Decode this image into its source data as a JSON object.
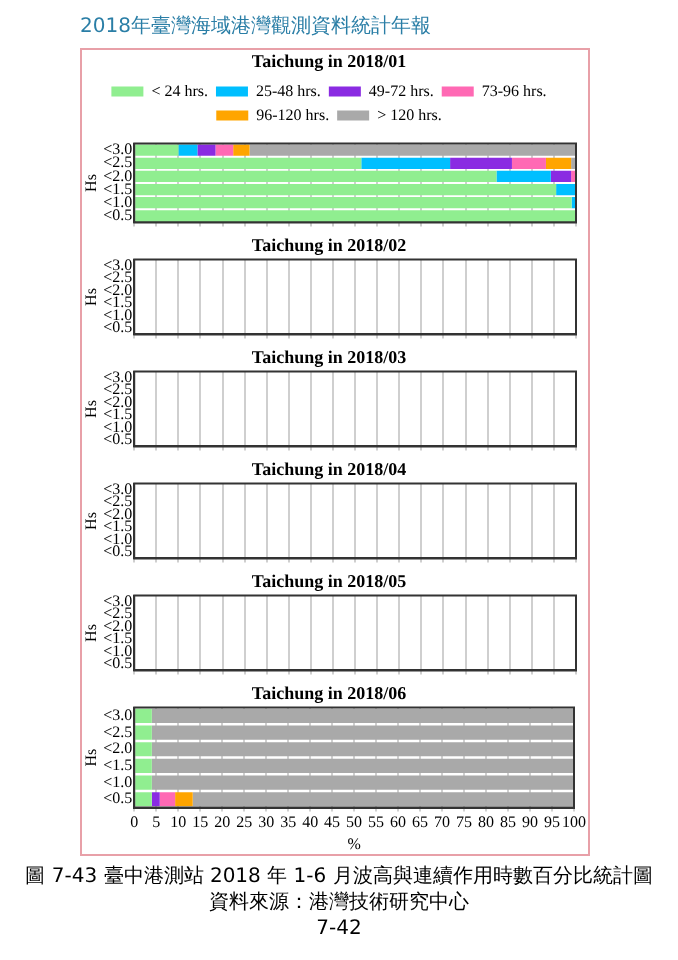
{
  "chart_data": [
    {
      "type": "bar",
      "orientation": "horizontal",
      "stacked": true,
      "title": "Taichung in 2018/01",
      "ylabel": "Hs",
      "legend": "top",
      "grid": "x",
      "tick_labels": "y",
      "annotations": [
        "2018年臺灣海域港灣觀測資料統計年報"
      ],
      "categories": [
        "<3.0",
        "<2.5",
        "<2.0",
        "<1.5",
        "<1.0",
        "<0.5"
      ],
      "xlim": [
        0,
        100
      ],
      "xticks": [
        0,
        5,
        10,
        15,
        20,
        25,
        30,
        35,
        40,
        45,
        50,
        55,
        60,
        65,
        70,
        75,
        80,
        85,
        90,
        95,
        100
      ],
      "series": [
        {
          "name": "< 24 hrs.",
          "color": "#90ee90",
          "values": [
            10,
            51.4,
            82,
            95.5,
            99,
            100
          ]
        },
        {
          "name": "25-48 hrs.",
          "color": "#00bfff",
          "values": [
            4.3,
            20.1,
            12.3,
            4.5,
            1,
            0
          ]
        },
        {
          "name": "49-72 hrs.",
          "color": "#8a2be2",
          "values": [
            4.1,
            14,
            4.6,
            0,
            0,
            0
          ]
        },
        {
          "name": "73-96 hrs.",
          "color": "#ff69b4",
          "values": [
            4,
            7.7,
            1.1,
            0,
            0,
            0
          ]
        },
        {
          "name": "96-120 hrs.",
          "color": "#ffa500",
          "values": [
            3.7,
            5.7,
            0,
            0,
            0,
            0
          ]
        },
        {
          "name": "> 120 hrs.",
          "color": "#a9a9a9",
          "values": [
            73.9,
            1.1,
            0,
            0,
            0,
            0
          ]
        }
      ]
    },
    {
      "type": "bar",
      "orientation": "horizontal",
      "stacked": true,
      "title": "Taichung in 2018/02",
      "ylabel": "Hs",
      "grid": "x",
      "tick_labels": "y",
      "categories": [
        "<3.0",
        "<2.5",
        "<2.0",
        "<1.5",
        "<1.0",
        "<0.5"
      ],
      "xlim": [
        0,
        100
      ],
      "xticks": [
        0,
        5,
        10,
        15,
        20,
        25,
        30,
        35,
        40,
        45,
        50,
        55,
        60,
        65,
        70,
        75,
        80,
        85,
        90,
        95,
        100
      ],
      "series": [
        {
          "color": "#90ee90",
          "values": [
            null,
            null,
            null,
            null,
            null,
            null
          ]
        }
      ]
    },
    {
      "type": "bar",
      "orientation": "horizontal",
      "stacked": true,
      "title": "Taichung in 2018/03",
      "ylabel": "Hs",
      "grid": "x",
      "tick_labels": "y",
      "categories": [
        "<3.0",
        "<2.5",
        "<2.0",
        "<1.5",
        "<1.0",
        "<0.5"
      ],
      "xlim": [
        0,
        100
      ],
      "xticks": [
        0,
        5,
        10,
        15,
        20,
        25,
        30,
        35,
        40,
        45,
        50,
        55,
        60,
        65,
        70,
        75,
        80,
        85,
        90,
        95,
        100
      ],
      "series": [
        {
          "color": "#90ee90",
          "values": [
            null,
            null,
            null,
            null,
            null,
            null
          ]
        }
      ]
    },
    {
      "type": "bar",
      "orientation": "horizontal",
      "stacked": true,
      "title": "Taichung in 2018/04",
      "ylabel": "Hs",
      "grid": "x",
      "tick_labels": "y",
      "categories": [
        "<3.0",
        "<2.5",
        "<2.0",
        "<1.5",
        "<1.0",
        "<0.5"
      ],
      "xlim": [
        0,
        100
      ],
      "xticks": [
        0,
        5,
        10,
        15,
        20,
        25,
        30,
        35,
        40,
        45,
        50,
        55,
        60,
        65,
        70,
        75,
        80,
        85,
        90,
        95,
        100
      ],
      "series": [
        {
          "color": "#90ee90",
          "values": [
            null,
            null,
            null,
            null,
            null,
            null
          ]
        }
      ]
    },
    {
      "type": "bar",
      "orientation": "horizontal",
      "stacked": true,
      "title": "Taichung in 2018/05",
      "ylabel": "Hs",
      "grid": "x",
      "tick_labels": "y",
      "categories": [
        "<3.0",
        "<2.5",
        "<2.0",
        "<1.5",
        "<1.0",
        "<0.5"
      ],
      "xlim": [
        0,
        100
      ],
      "xticks": [
        0,
        5,
        10,
        15,
        20,
        25,
        30,
        35,
        40,
        45,
        50,
        55,
        60,
        65,
        70,
        75,
        80,
        85,
        90,
        95,
        100
      ],
      "series": [
        {
          "color": "#90ee90",
          "values": [
            null,
            null,
            null,
            null,
            null,
            null
          ]
        }
      ]
    },
    {
      "type": "bar",
      "orientation": "horizontal",
      "stacked": true,
      "title": "Taichung in 2018/06",
      "ylabel": "Hs",
      "xlabel": "%",
      "grid": "x",
      "annotations": [
        "圖 7-43 臺中港測站 2018 年 1-6 月波高與連續作用時數百分比統計圖",
        "資料來源：港灣技術研究中心",
        "7-42"
      ],
      "categories": [
        "<3.0",
        "<2.5",
        "<2.0",
        "<1.5",
        "<1.0",
        "<0.5"
      ],
      "xlim": [
        0,
        100
      ],
      "xticks": [
        0,
        5,
        10,
        15,
        20,
        25,
        30,
        35,
        40,
        45,
        50,
        55,
        60,
        65,
        70,
        75,
        80,
        85,
        90,
        95,
        100
      ],
      "series": [
        {
          "color": "#90ee90",
          "values": [
            4,
            4,
            4,
            4,
            4,
            4
          ]
        },
        {
          "color": "#00bfff",
          "values": [
            0,
            0,
            0,
            0,
            0,
            0
          ]
        },
        {
          "color": "#8a2be2",
          "values": [
            0,
            0,
            0,
            0,
            0,
            1.8
          ]
        },
        {
          "color": "#ff69b4",
          "values": [
            0,
            0,
            0,
            0,
            0,
            3.5
          ]
        },
        {
          "color": "#ffa500",
          "values": [
            0,
            0,
            0,
            0,
            0,
            4
          ]
        },
        {
          "color": "#a9a9a9",
          "values": [
            96,
            96,
            96,
            96,
            96,
            86.9
          ]
        }
      ]
    }
  ]
}
